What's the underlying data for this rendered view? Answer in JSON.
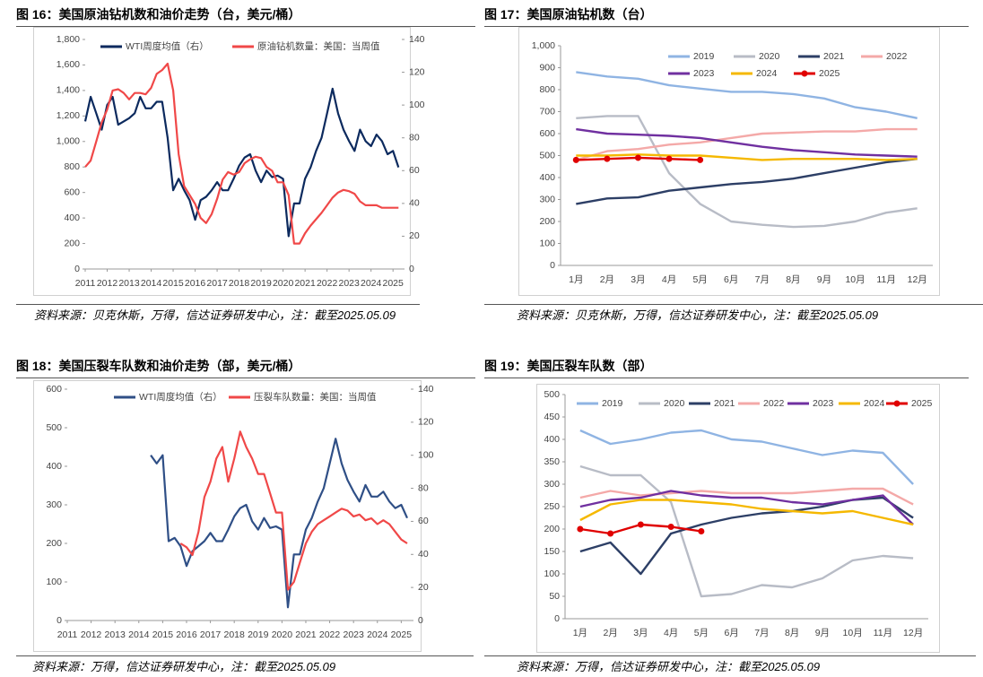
{
  "chart_data": [
    {
      "type": "line",
      "title": "图 16：美国原油钻机数和油价走势（台，美元/桶）",
      "source": "资料来源：贝克休斯，万得，信达证券研发中心，注：截至2025.05.09",
      "x": [
        2011,
        2011.25,
        2011.5,
        2011.75,
        2012,
        2012.25,
        2012.5,
        2012.75,
        2013,
        2013.25,
        2013.5,
        2013.75,
        2014,
        2014.25,
        2014.5,
        2014.75,
        2015,
        2015.25,
        2015.5,
        2015.75,
        2016,
        2016.25,
        2016.5,
        2016.75,
        2017,
        2017.25,
        2017.5,
        2017.75,
        2018,
        2018.25,
        2018.5,
        2018.75,
        2019,
        2019.25,
        2019.5,
        2019.75,
        2020,
        2020.25,
        2020.5,
        2020.75,
        2021,
        2021.25,
        2021.5,
        2021.75,
        2022,
        2022.25,
        2022.5,
        2022.75,
        2023,
        2023.25,
        2023.5,
        2023.75,
        2024,
        2024.25,
        2024.5,
        2024.75,
        2025,
        2025.25
      ],
      "xlim": [
        2011,
        2025.4
      ],
      "xticks": [
        2011,
        2012,
        2013,
        2014,
        2015,
        2016,
        2017,
        2018,
        2019,
        2020,
        2021,
        2022,
        2023,
        2024,
        2025
      ],
      "ylim": [
        0,
        1800
      ],
      "yticks": [
        0,
        200,
        400,
        600,
        800,
        {
          "value": 1000,
          "label": "1,000"
        },
        {
          "value": 1200,
          "label": "1,200"
        },
        {
          "value": 1400,
          "label": "1,400"
        },
        {
          "value": 1600,
          "label": "1,600"
        },
        {
          "value": 1800,
          "label": "1,800"
        }
      ],
      "y2lim": [
        0,
        140
      ],
      "y2ticks": [
        0,
        20,
        40,
        60,
        80,
        100,
        120,
        140
      ],
      "series": [
        {
          "name": "WTI周度均值（右）",
          "color": "#0c2a5e",
          "axis": "y2",
          "values": [
            90,
            105,
            95,
            85,
            100,
            105,
            88,
            90,
            92,
            95,
            105,
            98,
            98,
            102,
            102,
            80,
            48,
            55,
            48,
            42,
            30,
            42,
            44,
            48,
            53,
            48,
            48,
            55,
            63,
            68,
            70,
            60,
            53,
            60,
            56,
            57,
            55,
            20,
            40,
            40,
            55,
            62,
            72,
            80,
            95,
            110,
            95,
            85,
            78,
            72,
            85,
            78,
            75,
            82,
            78,
            70,
            72,
            62
          ]
        },
        {
          "name": "原油钻机数量：美国：当周值",
          "color": "#f04848",
          "values": [
            800,
            850,
            1000,
            1150,
            1250,
            1400,
            1410,
            1380,
            1330,
            1380,
            1380,
            1370,
            1420,
            1530,
            1560,
            1610,
            1400,
            900,
            650,
            580,
            510,
            400,
            360,
            430,
            550,
            700,
            760,
            740,
            760,
            830,
            860,
            880,
            870,
            800,
            770,
            680,
            680,
            580,
            200,
            200,
            280,
            340,
            390,
            440,
            500,
            560,
            600,
            620,
            610,
            590,
            530,
            500,
            500,
            500,
            480,
            480,
            480,
            480
          ]
        }
      ]
    },
    {
      "type": "line",
      "title": "图 17：美国原油钻机数（台）",
      "source": "资料来源：贝克休斯，万得，信达证券研发中心，注：截至2025.05.09",
      "categories": [
        "1月",
        "2月",
        "3月",
        "4月",
        "5月",
        "6月",
        "7月",
        "8月",
        "9月",
        "10月",
        "11月",
        "12月"
      ],
      "ylim": [
        0,
        1000
      ],
      "yticks": [
        0,
        100,
        200,
        300,
        400,
        500,
        600,
        700,
        800,
        900,
        {
          "value": 1000,
          "label": "1,000"
        }
      ],
      "series": [
        {
          "name": "2019",
          "color": "#8fb4e3",
          "values": [
            880,
            860,
            850,
            820,
            805,
            790,
            790,
            780,
            760,
            720,
            700,
            670
          ]
        },
        {
          "name": "2020",
          "color": "#b8bcc6",
          "values": [
            670,
            680,
            680,
            420,
            280,
            200,
            185,
            175,
            180,
            200,
            240,
            260
          ]
        },
        {
          "name": "2021",
          "color": "#2d3f66",
          "values": [
            280,
            305,
            310,
            340,
            355,
            370,
            380,
            395,
            420,
            445,
            470,
            485
          ]
        },
        {
          "name": "2022",
          "color": "#f4a9a8",
          "values": [
            480,
            520,
            530,
            550,
            560,
            580,
            600,
            605,
            610,
            610,
            620,
            620
          ]
        },
        {
          "name": "2023",
          "color": "#7030a0",
          "values": [
            620,
            600,
            595,
            590,
            580,
            560,
            540,
            525,
            515,
            505,
            500,
            495
          ]
        },
        {
          "name": "2024",
          "color": "#f5b800",
          "values": [
            500,
            500,
            505,
            500,
            500,
            490,
            480,
            485,
            485,
            485,
            480,
            485
          ]
        },
        {
          "name": "2025",
          "color": "#e00000",
          "markers": true,
          "values": [
            480,
            485,
            490,
            485,
            480,
            null,
            null,
            null,
            null,
            null,
            null,
            null
          ]
        }
      ]
    },
    {
      "type": "line",
      "title": "图 18：美国压裂车队数和油价走势（部，美元/桶）",
      "source": "资料来源：万得，信达证券研发中心，注：截至2025.05.09",
      "x": [
        2014.5,
        2014.75,
        2015,
        2015.25,
        2015.5,
        2015.75,
        2016,
        2016.25,
        2016.5,
        2016.75,
        2017,
        2017.25,
        2017.5,
        2017.75,
        2018,
        2018.25,
        2018.5,
        2018.75,
        2019,
        2019.25,
        2019.5,
        2019.75,
        2020,
        2020.25,
        2020.5,
        2020.75,
        2021,
        2021.25,
        2021.5,
        2021.75,
        2022,
        2022.25,
        2022.5,
        2022.75,
        2023,
        2023.25,
        2023.5,
        2023.75,
        2024,
        2024.25,
        2024.5,
        2024.75,
        2025,
        2025.25
      ],
      "xlim": [
        2011,
        2025.4
      ],
      "xticks": [
        2011,
        2012,
        2013,
        2014,
        2015,
        2016,
        2017,
        2018,
        2019,
        2020,
        2021,
        2022,
        2023,
        2024,
        2025
      ],
      "ylim": [
        0,
        600
      ],
      "yticks": [
        0,
        100,
        200,
        300,
        400,
        500,
        600
      ],
      "y2lim": [
        0,
        140
      ],
      "y2ticks": [
        0,
        20,
        40,
        60,
        80,
        100,
        120,
        140
      ],
      "series": [
        {
          "name": "WTI周度均值（右）",
          "color": "#2f4f86",
          "axis": "y2",
          "values": [
            100,
            95,
            100,
            48,
            50,
            45,
            33,
            42,
            45,
            48,
            53,
            48,
            48,
            55,
            63,
            68,
            70,
            60,
            55,
            62,
            56,
            57,
            55,
            8,
            40,
            40,
            55,
            62,
            72,
            80,
            95,
            110,
            95,
            85,
            78,
            72,
            82,
            75,
            75,
            78,
            72,
            68,
            70,
            62
          ]
        },
        {
          "name": "压裂车队数量：美国：当周值",
          "color": "#f04848",
          "values": [
            null,
            null,
            null,
            null,
            null,
            200,
            190,
            170,
            230,
            320,
            360,
            420,
            450,
            360,
            420,
            490,
            450,
            420,
            380,
            380,
            330,
            280,
            280,
            80,
            100,
            150,
            200,
            230,
            250,
            260,
            270,
            280,
            290,
            285,
            270,
            275,
            260,
            265,
            250,
            260,
            250,
            230,
            210,
            200
          ]
        }
      ]
    },
    {
      "type": "line",
      "title": "图 19：美国压裂车队数（部）",
      "source": "资料来源：万得，信达证券研发中心，注：截至2025.05.09",
      "categories": [
        "1月",
        "2月",
        "3月",
        "4月",
        "5月",
        "6月",
        "7月",
        "8月",
        "9月",
        "10月",
        "11月",
        "12月"
      ],
      "ylim": [
        0,
        500
      ],
      "yticks": [
        0,
        50,
        100,
        150,
        200,
        250,
        300,
        350,
        400,
        450,
        500
      ],
      "series": [
        {
          "name": "2019",
          "color": "#8fb4e3",
          "values": [
            420,
            390,
            400,
            415,
            420,
            400,
            395,
            380,
            365,
            375,
            370,
            300
          ]
        },
        {
          "name": "2020",
          "color": "#b8bcc6",
          "values": [
            340,
            320,
            320,
            260,
            50,
            55,
            75,
            70,
            90,
            130,
            140,
            135
          ]
        },
        {
          "name": "2021",
          "color": "#2d3f66",
          "values": [
            150,
            170,
            100,
            190,
            210,
            225,
            235,
            240,
            250,
            265,
            270,
            225
          ]
        },
        {
          "name": "2022",
          "color": "#f4a9a8",
          "values": [
            270,
            285,
            275,
            280,
            285,
            280,
            280,
            280,
            285,
            290,
            290,
            255
          ]
        },
        {
          "name": "2023",
          "color": "#7030a0",
          "values": [
            250,
            265,
            270,
            285,
            275,
            270,
            270,
            260,
            255,
            265,
            275,
            210
          ]
        },
        {
          "name": "2024",
          "color": "#f5b800",
          "values": [
            220,
            255,
            265,
            265,
            260,
            255,
            245,
            240,
            235,
            240,
            225,
            210
          ]
        },
        {
          "name": "2025",
          "color": "#e00000",
          "markers": true,
          "values": [
            200,
            190,
            210,
            205,
            195,
            null,
            null,
            null,
            null,
            null,
            null,
            null
          ]
        }
      ]
    }
  ]
}
